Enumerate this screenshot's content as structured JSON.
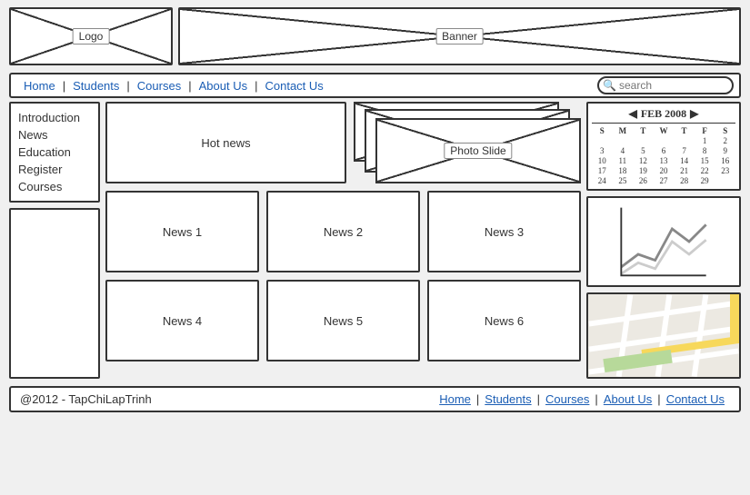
{
  "header": {
    "logo_label": "Logo",
    "banner_label": "Banner"
  },
  "nav": {
    "items": [
      "Home",
      "Students",
      "Courses",
      "About Us",
      "Contact Us"
    ],
    "search_placeholder": "search"
  },
  "sidebar": {
    "items": [
      "Introduction",
      "News",
      "Education",
      "Register",
      "Courses"
    ]
  },
  "content": {
    "hot_news_label": "Hot news",
    "photo_slide_label": "Photo Slide",
    "news_items": [
      "News 1",
      "News 2",
      "News 3",
      "News 4",
      "News 5",
      "News 6"
    ]
  },
  "calendar": {
    "title": "FEB 2008",
    "dow": [
      "S",
      "M",
      "T",
      "W",
      "T",
      "F",
      "S"
    ],
    "days": [
      "",
      "",
      "",
      "",
      "",
      "1",
      "2",
      "3",
      "4",
      "5",
      "6",
      "7",
      "8",
      "9",
      "10",
      "11",
      "12",
      "13",
      "14",
      "15",
      "16",
      "17",
      "18",
      "19",
      "20",
      "21",
      "22",
      "23",
      "24",
      "25",
      "26",
      "27",
      "28",
      "29"
    ]
  },
  "chart": {
    "series1": [
      [
        0,
        70
      ],
      [
        20,
        55
      ],
      [
        40,
        62
      ],
      [
        60,
        25
      ],
      [
        80,
        40
      ],
      [
        100,
        20
      ]
    ],
    "series2": [
      [
        0,
        78
      ],
      [
        20,
        65
      ],
      [
        40,
        72
      ],
      [
        60,
        40
      ],
      [
        80,
        55
      ],
      [
        100,
        38
      ]
    ],
    "color1": "#888888",
    "color2": "#cccccc",
    "axis_color": "#333333"
  },
  "footer": {
    "copyright": "@2012 - TapChiLapTrinh",
    "links": [
      "Home",
      "Students",
      "Courses",
      "About Us",
      "Contact Us"
    ]
  }
}
